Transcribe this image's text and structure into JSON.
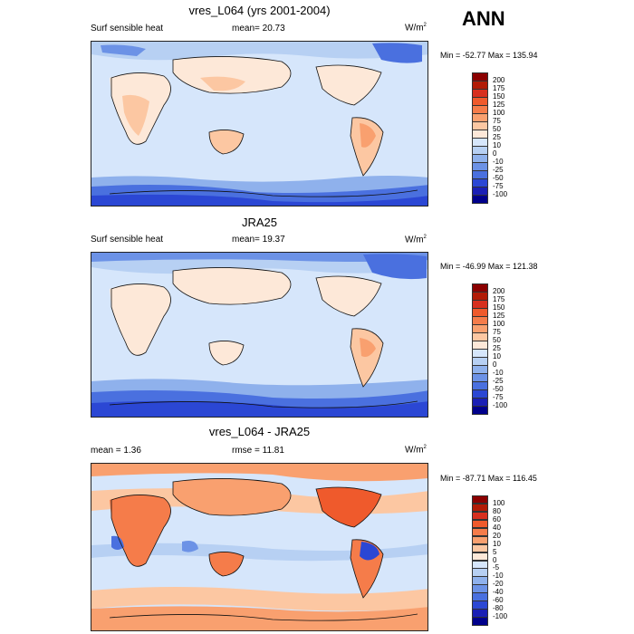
{
  "season": "ANN",
  "panels": [
    {
      "title": "vres_L064 (yrs 2001-2004)",
      "left_label": "Surf sensible heat",
      "center_label": "mean=  20.73",
      "right_label": "W/m",
      "right_sup": "2",
      "minmax": "Min = -52.77 Max = 135.94",
      "colorbar_labels": [
        "200",
        "175",
        "150",
        "125",
        "100",
        "75",
        "50",
        "25",
        "10",
        "0",
        "-10",
        "-25",
        "-50",
        "-75",
        "-100"
      ],
      "colorbar_colors": [
        "#8b0000",
        "#b21b06",
        "#d7301f",
        "#ef5a2c",
        "#f57c4a",
        "#f9a06f",
        "#fcc7a2",
        "#fde8d8",
        "#d6e6fb",
        "#b7d0f3",
        "#8fb1ec",
        "#6c92e6",
        "#4a70df",
        "#2b47d4",
        "#1a1fb5",
        "#00008b"
      ]
    },
    {
      "title": "JRA25",
      "left_label": "Surf sensible heat",
      "center_label": "mean=  19.37",
      "right_label": "W/m",
      "right_sup": "2",
      "minmax": "Min = -46.99 Max = 121.38",
      "colorbar_labels": [
        "200",
        "175",
        "150",
        "125",
        "100",
        "75",
        "50",
        "25",
        "10",
        "0",
        "-10",
        "-25",
        "-50",
        "-75",
        "-100"
      ],
      "colorbar_colors": [
        "#8b0000",
        "#b21b06",
        "#d7301f",
        "#ef5a2c",
        "#f57c4a",
        "#f9a06f",
        "#fcc7a2",
        "#fde8d8",
        "#d6e6fb",
        "#b7d0f3",
        "#8fb1ec",
        "#6c92e6",
        "#4a70df",
        "#2b47d4",
        "#1a1fb5",
        "#00008b"
      ]
    },
    {
      "title": "vres_L064 - JRA25",
      "left_label": "mean =   1.36",
      "center_label": "rmse =  11.81",
      "right_label": "W/m",
      "right_sup": "2",
      "minmax": "Min = -87.71 Max = 116.45",
      "colorbar_labels": [
        "100",
        "80",
        "60",
        "40",
        "20",
        "10",
        "5",
        "0",
        "-5",
        "-10",
        "-20",
        "-40",
        "-60",
        "-80",
        "-100"
      ],
      "colorbar_colors": [
        "#8b0000",
        "#b21b06",
        "#d7301f",
        "#ef5a2c",
        "#f57c4a",
        "#f9a06f",
        "#fcc7a2",
        "#fde8d8",
        "#d6e6fb",
        "#b7d0f3",
        "#8fb1ec",
        "#6c92e6",
        "#4a70df",
        "#2b47d4",
        "#1a1fb5",
        "#00008b"
      ]
    }
  ]
}
